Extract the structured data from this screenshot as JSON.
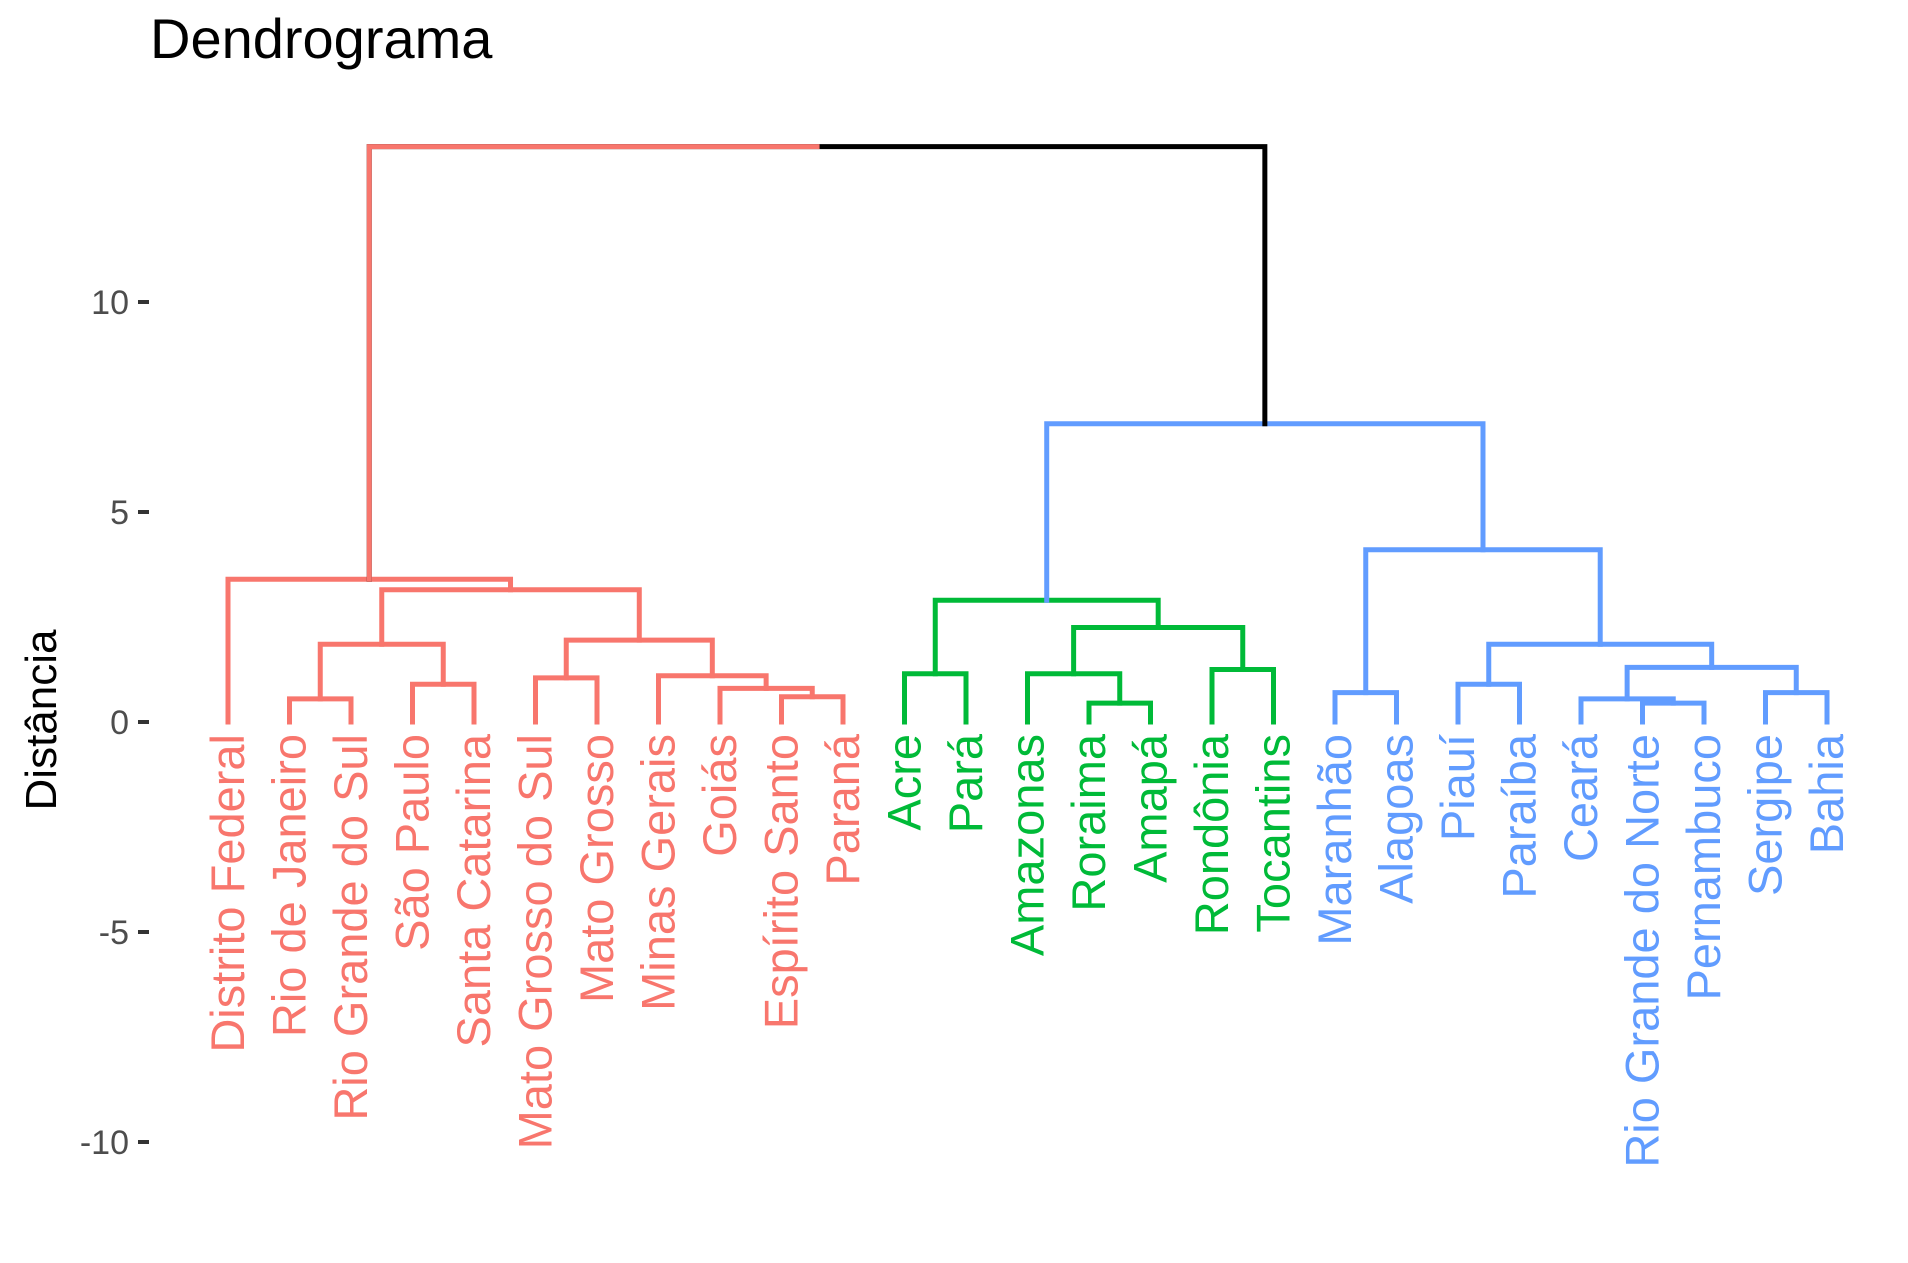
{
  "chart_data": {
    "type": "dendrogram",
    "title": "Dendrograma",
    "ylabel": "Distância",
    "xlabel": "",
    "ylim": [
      -12.1,
      13.8
    ],
    "yticks": [
      {
        "value": 10,
        "label": "10"
      },
      {
        "value": 5,
        "label": "5"
      },
      {
        "value": 0,
        "label": "0"
      },
      {
        "value": -5,
        "label": "-5"
      },
      {
        "value": -10,
        "label": "-10"
      }
    ],
    "grid": false,
    "leaves": [
      {
        "label": "Distrito Federal",
        "cluster": 1
      },
      {
        "label": "Rio de Janeiro",
        "cluster": 1
      },
      {
        "label": "Rio Grande do Sul",
        "cluster": 1
      },
      {
        "label": "São Paulo",
        "cluster": 1
      },
      {
        "label": "Santa Catarina",
        "cluster": 1
      },
      {
        "label": "Mato Grosso do Sul",
        "cluster": 1
      },
      {
        "label": "Mato Grosso",
        "cluster": 1
      },
      {
        "label": "Minas Gerais",
        "cluster": 1
      },
      {
        "label": "Goiás",
        "cluster": 1
      },
      {
        "label": "Espírito Santo",
        "cluster": 1
      },
      {
        "label": "Paraná",
        "cluster": 1
      },
      {
        "label": "Acre",
        "cluster": 2
      },
      {
        "label": "Pará",
        "cluster": 2
      },
      {
        "label": "Amazonas",
        "cluster": 2
      },
      {
        "label": "Roraima",
        "cluster": 2
      },
      {
        "label": "Amapá",
        "cluster": 2
      },
      {
        "label": "Rondônia",
        "cluster": 2
      },
      {
        "label": "Tocantins",
        "cluster": 2
      },
      {
        "label": "Maranhão",
        "cluster": 3
      },
      {
        "label": "Alagoas",
        "cluster": 3
      },
      {
        "label": "Piauí",
        "cluster": 3
      },
      {
        "label": "Paraíba",
        "cluster": 3
      },
      {
        "label": "Ceará",
        "cluster": 3
      },
      {
        "label": "Rio Grande do Norte",
        "cluster": 3
      },
      {
        "label": "Pernambuco",
        "cluster": 3
      },
      {
        "label": "Sergipe",
        "cluster": 3
      },
      {
        "label": "Bahia",
        "cluster": 3
      }
    ],
    "merges": [
      {
        "a": 1,
        "b": 2,
        "height": 0.55,
        "cluster": 1
      },
      {
        "a": 3,
        "b": 4,
        "height": 0.9,
        "cluster": 1
      },
      {
        "a": "n0",
        "b": "n1",
        "height": 1.85,
        "cluster": 1
      },
      {
        "a": 5,
        "b": 6,
        "height": 1.05,
        "cluster": 1
      },
      {
        "a": 9,
        "b": 10,
        "height": 0.6,
        "cluster": 1
      },
      {
        "a": 8,
        "b": "n4",
        "height": 0.8,
        "cluster": 1
      },
      {
        "a": 7,
        "b": "n5",
        "height": 1.1,
        "cluster": 1
      },
      {
        "a": "n3",
        "b": "n6",
        "height": 1.95,
        "cluster": 1
      },
      {
        "a": "n2",
        "b": "n7",
        "height": 3.15,
        "cluster": 1
      },
      {
        "a": 0,
        "b": "n8",
        "height": 3.4,
        "cluster": 1
      },
      {
        "a": 11,
        "b": 12,
        "height": 1.15,
        "cluster": 2
      },
      {
        "a": 14,
        "b": 15,
        "height": 0.45,
        "cluster": 2
      },
      {
        "a": 13,
        "b": "n11",
        "height": 1.15,
        "cluster": 2
      },
      {
        "a": 16,
        "b": 17,
        "height": 1.25,
        "cluster": 2
      },
      {
        "a": "n12",
        "b": "n13",
        "height": 2.25,
        "cluster": 2
      },
      {
        "a": "n10",
        "b": "n14",
        "height": 2.9,
        "cluster": 2
      },
      {
        "a": 18,
        "b": 19,
        "height": 0.7,
        "cluster": 3
      },
      {
        "a": 20,
        "b": 21,
        "height": 0.9,
        "cluster": 3
      },
      {
        "a": 23,
        "b": 24,
        "height": 0.45,
        "cluster": 3
      },
      {
        "a": 22,
        "b": "n18",
        "height": 0.55,
        "cluster": 3
      },
      {
        "a": 25,
        "b": 26,
        "height": 0.7,
        "cluster": 3
      },
      {
        "a": "n19",
        "b": "n20",
        "height": 1.3,
        "cluster": 3
      },
      {
        "a": "n17",
        "b": "n21",
        "height": 1.85,
        "cluster": 3
      },
      {
        "a": "n16",
        "b": "n22",
        "height": 4.1,
        "cluster": 3
      },
      {
        "a": "n15",
        "b": "n23",
        "height": 7.1,
        "cluster": 3
      },
      {
        "a": "n9",
        "b": "n24",
        "height": 13.7,
        "cluster": 0
      }
    ],
    "colors": {
      "0": "#000000",
      "1": "#F8766D",
      "2": "#00BA38",
      "3": "#619CFF"
    }
  }
}
